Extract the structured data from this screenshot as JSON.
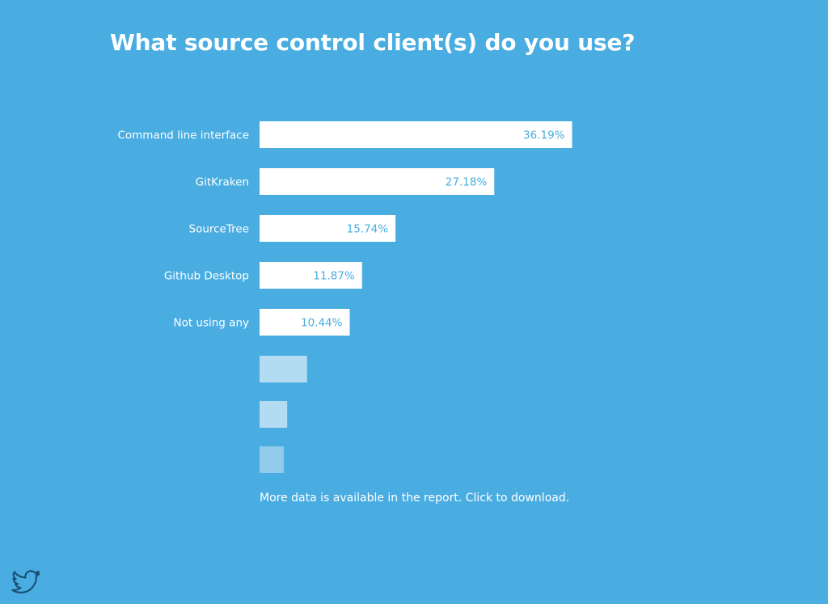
{
  "title": "What source control client(s) do you use?",
  "footnote": "More data is available in the report. Click to download.",
  "colors": {
    "background": "#49ade2",
    "bar": "#ffffff",
    "value_text": "#49ade2",
    "label_text": "#ffffff",
    "fade_bars": [
      "#b3dcf2",
      "#b3dcf2",
      "#90cbec"
    ]
  },
  "icons": {
    "share": "twitter-icon"
  },
  "chart_data": {
    "type": "bar",
    "orientation": "horizontal",
    "categories": [
      "Command line interface",
      "GitKraken",
      "SourceTree",
      "Github Desktop",
      "Not using any"
    ],
    "values": [
      36.19,
      27.18,
      15.74,
      11.87,
      10.44
    ],
    "value_labels": [
      "36.19%",
      "27.18%",
      "15.74%",
      "11.87%",
      "10.44%"
    ],
    "unlabeled_values": [
      5.5,
      3.2,
      2.8
    ],
    "xlim": [
      0,
      100
    ],
    "grid": false
  }
}
